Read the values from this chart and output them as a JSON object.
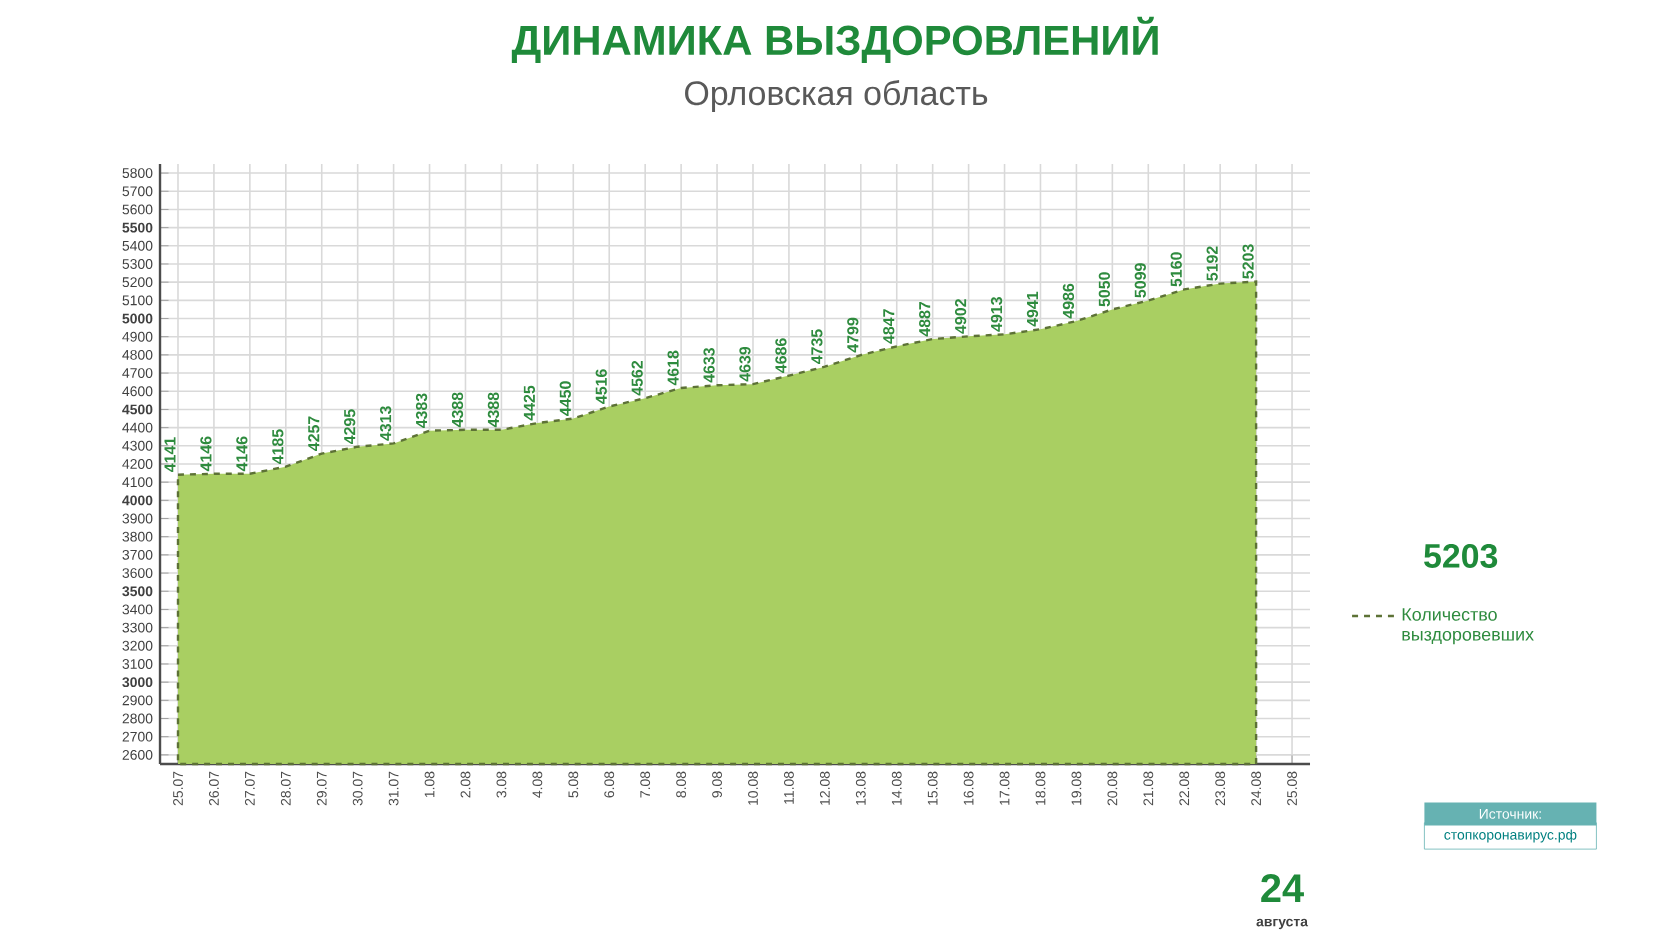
{
  "chart_data": {
    "type": "area",
    "title": "ДИНАМИКА ВЫЗДОРОВЛЕНИЙ",
    "subtitle": "Орловская область",
    "categories": [
      "25.07",
      "26.07",
      "27.07",
      "28.07",
      "29.07",
      "30.07",
      "31.07",
      "1.08",
      "2.08",
      "3.08",
      "4.08",
      "5.08",
      "6.08",
      "7.08",
      "8.08",
      "9.08",
      "10.08",
      "11.08",
      "12.08",
      "13.08",
      "14.08",
      "15.08",
      "16.08",
      "17.08",
      "18.08",
      "19.08",
      "20.08",
      "21.08",
      "22.08",
      "23.08",
      "24.08",
      "25.08"
    ],
    "series": [
      {
        "name": "Количество выздоровевших",
        "color": "#a9cf62",
        "values": [
          4141,
          4146,
          4146,
          4185,
          4257,
          4295,
          4313,
          4383,
          4388,
          4388,
          4425,
          4450,
          4516,
          4562,
          4618,
          4633,
          4639,
          4686,
          4735,
          4799,
          4847,
          4887,
          4902,
          4913,
          4941,
          4986,
          5050,
          5099,
          5160,
          5192,
          5203,
          null
        ]
      }
    ],
    "ylim": [
      2550,
      5850
    ],
    "yticks": [
      2600,
      2700,
      2800,
      2900,
      3000,
      3100,
      3200,
      3300,
      3400,
      3500,
      3600,
      3700,
      3800,
      3900,
      4000,
      4100,
      4200,
      4300,
      4400,
      4500,
      4600,
      4700,
      4800,
      4900,
      5000,
      5100,
      5200,
      5300,
      5400,
      5500,
      5600,
      5700,
      5800
    ],
    "grid": true,
    "legend": "right",
    "marker": "none",
    "line_style": "dashed",
    "data_labels": true,
    "annotations": [
      "5203",
      "Источник:",
      "стопкоронавирус.рф",
      "24",
      "августа"
    ]
  }
}
